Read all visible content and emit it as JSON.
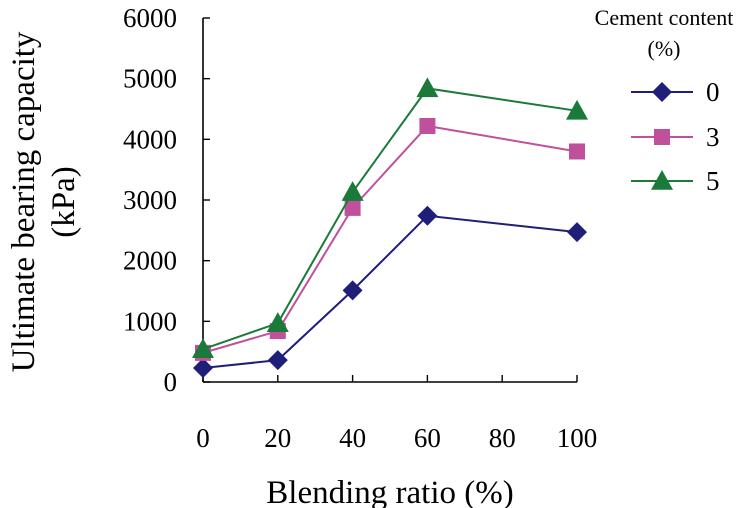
{
  "chart_data": {
    "type": "line",
    "title": "",
    "xlabel": "Blending ratio (%)",
    "ylabel_line1": "Ultimate bearing capacity",
    "ylabel_line2": "(kPa)",
    "x": [
      0,
      20,
      40,
      60,
      100
    ],
    "xlim": [
      0,
      100
    ],
    "ylim": [
      0,
      6000
    ],
    "xticks": [
      "0",
      "20",
      "40",
      "60",
      "80",
      "100"
    ],
    "yticks": [
      "0",
      "1000",
      "2000",
      "3000",
      "4000",
      "5000",
      "6000"
    ],
    "xtick_values": [
      0,
      20,
      40,
      60,
      80,
      100
    ],
    "ytick_values": [
      0,
      1000,
      2000,
      3000,
      4000,
      5000,
      6000
    ],
    "grid": false,
    "legend": {
      "title_line1": "Cement content",
      "title_line2": "(%)",
      "placement": "right"
    },
    "series": [
      {
        "name": "0",
        "color": "#1f1f7a",
        "marker": "diamond",
        "values": [
          230,
          360,
          1510,
          2740,
          2470
        ]
      },
      {
        "name": "3",
        "color": "#c0509c",
        "marker": "square",
        "values": [
          480,
          840,
          2870,
          4220,
          3800
        ]
      },
      {
        "name": "5",
        "color": "#1b7a3a",
        "marker": "triangle",
        "values": [
          540,
          970,
          3130,
          4840,
          4470
        ]
      }
    ]
  }
}
